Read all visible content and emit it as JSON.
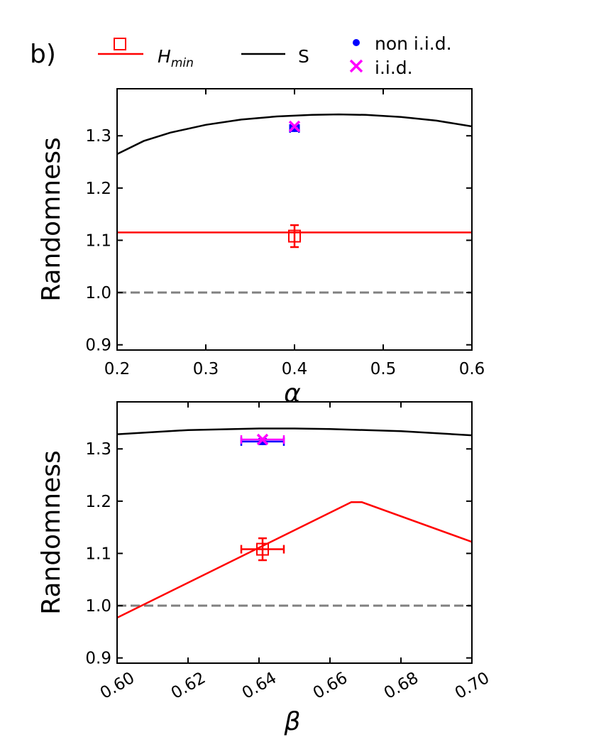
{
  "panel_label": "b)",
  "legend": {
    "hmin": {
      "label": "H",
      "sub": "min",
      "color": "#ff0000"
    },
    "s": {
      "label": "S",
      "color": "#000000"
    },
    "non_iid": {
      "label": "non i.i.d.",
      "color": "#0000ff"
    },
    "iid": {
      "label": "i.i.d.",
      "color": "#ff00ff"
    }
  },
  "chart_data": [
    {
      "type": "line",
      "panel": "top",
      "xlabel": "α",
      "ylabel": "Randomness",
      "xlim": [
        0.2,
        0.6
      ],
      "ylim": [
        0.89,
        1.39
      ],
      "xticks": [
        0.2,
        0.3,
        0.4,
        0.5,
        0.6
      ],
      "xtick_labels": [
        "0.2",
        "0.3",
        "0.4",
        "0.5",
        "0.6"
      ],
      "yticks": [
        0.9,
        1.0,
        1.1,
        1.2,
        1.3
      ],
      "ytick_labels": [
        "0.9",
        "1.0",
        "1.1",
        "1.2",
        "1.3"
      ],
      "grid": false,
      "series": [
        {
          "key": "s",
          "name": "S",
          "color": "#000000",
          "x": [
            0.2,
            0.23,
            0.26,
            0.3,
            0.34,
            0.38,
            0.42,
            0.45,
            0.48,
            0.52,
            0.56,
            0.6
          ],
          "y": [
            1.265,
            1.29,
            1.306,
            1.321,
            1.331,
            1.337,
            1.34,
            1.341,
            1.34,
            1.336,
            1.329,
            1.318
          ]
        },
        {
          "key": "hmin",
          "name": "H_min",
          "color": "#ff0000",
          "x": [
            0.2,
            0.6
          ],
          "y": [
            1.115,
            1.115
          ]
        }
      ],
      "reference_line": {
        "y": 1.0,
        "color": "#808080",
        "style": "dashed"
      },
      "points": [
        {
          "key": "hmin",
          "x": 0.4,
          "y": 1.108,
          "xerr": 0.0,
          "yerr": 0.021,
          "color": "#ff0000",
          "marker": "square"
        },
        {
          "key": "non_iid",
          "x": 0.4,
          "y": 1.314,
          "xerr": 0.005,
          "yerr": 0.005,
          "color": "#0000ff",
          "marker": "dot"
        },
        {
          "key": "iid",
          "x": 0.4,
          "y": 1.318,
          "xerr": 0.0,
          "yerr": 0.0,
          "color": "#ff00ff",
          "marker": "x"
        }
      ]
    },
    {
      "type": "line",
      "panel": "bottom",
      "xlabel": "β",
      "ylabel": "Randomness",
      "xlim": [
        0.6,
        0.7
      ],
      "ylim": [
        0.89,
        1.39
      ],
      "xticks": [
        0.6,
        0.62,
        0.64,
        0.66,
        0.68,
        0.7
      ],
      "xtick_labels": [
        "0.60",
        "0.62",
        "0.64",
        "0.66",
        "0.68",
        "0.70"
      ],
      "yticks": [
        0.9,
        1.0,
        1.1,
        1.2,
        1.3
      ],
      "ytick_labels": [
        "0.9",
        "1.0",
        "1.1",
        "1.2",
        "1.3"
      ],
      "grid": false,
      "series": [
        {
          "key": "s",
          "name": "S",
          "color": "#000000",
          "x": [
            0.6,
            0.62,
            0.64,
            0.65,
            0.66,
            0.68,
            0.7
          ],
          "y": [
            1.328,
            1.336,
            1.339,
            1.339,
            1.338,
            1.334,
            1.326
          ]
        },
        {
          "key": "hmin",
          "name": "H_min",
          "color": "#ff0000",
          "x": [
            0.6,
            0.666,
            0.669,
            0.7
          ],
          "y": [
            0.977,
            1.198,
            1.198,
            1.122
          ]
        }
      ],
      "reference_line": {
        "y": 1.0,
        "color": "#808080",
        "style": "dashed"
      },
      "points": [
        {
          "key": "hmin",
          "x": 0.641,
          "y": 1.108,
          "xerr": 0.006,
          "yerr": 0.021,
          "color": "#ff0000",
          "marker": "square"
        },
        {
          "key": "non_iid",
          "x": 0.641,
          "y": 1.314,
          "xerr": 0.006,
          "yerr": 0.005,
          "color": "#0000ff",
          "marker": "dot"
        },
        {
          "key": "iid",
          "x": 0.641,
          "y": 1.318,
          "xerr": 0.006,
          "yerr": 0.0,
          "color": "#ff00ff",
          "marker": "x"
        }
      ]
    }
  ]
}
